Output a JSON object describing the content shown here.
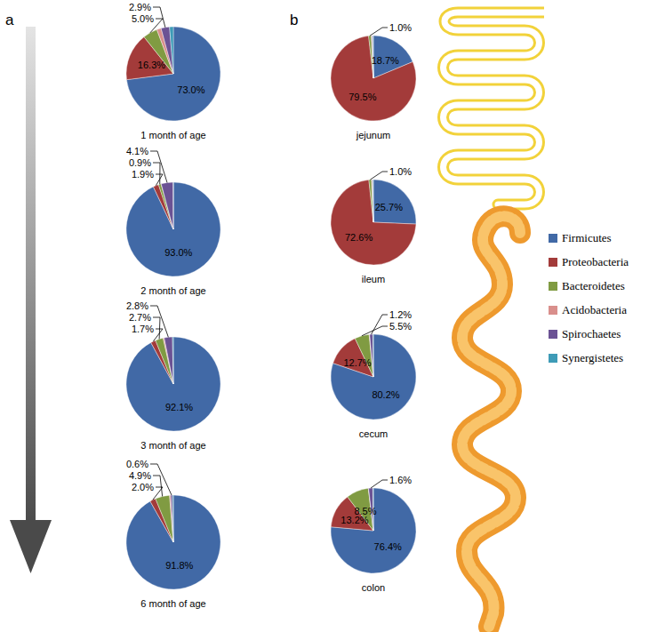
{
  "panel_labels": [
    "a",
    "b"
  ],
  "chart_data": [
    {
      "type": "pie",
      "title": "1 month of age",
      "categories": [
        "Firmicutes",
        "Proteobacteria",
        "Bacteroidetes",
        "Acidobacteria",
        "Spirochaetes",
        "Synergistetes"
      ],
      "values": [
        73.0,
        16.3,
        5.0,
        1.5,
        2.9,
        1.3
      ],
      "value_labels": [
        "73.0%",
        "16.3%",
        "5.0%",
        null,
        "2.9%",
        null
      ],
      "colors": [
        "#4169a6",
        "#a33b3a",
        "#809b42",
        "#d98f8c",
        "#6b5294",
        "#3e9bb7"
      ],
      "data_labels": true
    },
    {
      "type": "pie",
      "title": "2 month of age",
      "categories": [
        "Firmicutes",
        "Proteobacteria",
        "Bacteroidetes",
        "Acidobacteria",
        "Spirochaetes",
        "Synergistetes"
      ],
      "values": [
        93.0,
        1.9,
        0.9,
        0.05,
        4.1,
        0.05
      ],
      "value_labels": [
        "93.0%",
        "1.9%",
        "0.9%",
        null,
        "4.1%",
        null
      ],
      "colors": [
        "#4169a6",
        "#a33b3a",
        "#809b42",
        "#d98f8c",
        "#6b5294",
        "#3e9bb7"
      ],
      "data_labels": true
    },
    {
      "type": "pie",
      "title": "3 month of age",
      "categories": [
        "Firmicutes",
        "Proteobacteria",
        "Bacteroidetes",
        "Acidobacteria",
        "Spirochaetes",
        "Synergistetes"
      ],
      "values": [
        92.1,
        1.7,
        2.7,
        0.4,
        2.8,
        0.3
      ],
      "value_labels": [
        "92.1%",
        "1.7%",
        "2.7%",
        null,
        "2.8%",
        null
      ],
      "colors": [
        "#4169a6",
        "#a33b3a",
        "#809b42",
        "#d98f8c",
        "#6b5294",
        "#3e9bb7"
      ],
      "data_labels": true
    },
    {
      "type": "pie",
      "title": "6 month of age",
      "categories": [
        "Firmicutes",
        "Proteobacteria",
        "Bacteroidetes",
        "Acidobacteria",
        "Spirochaetes",
        "Synergistetes"
      ],
      "values": [
        91.8,
        2.0,
        4.9,
        0.4,
        0.6,
        0.3
      ],
      "value_labels": [
        "91.8%",
        "2.0%",
        "4.9%",
        null,
        "0.6%",
        null
      ],
      "colors": [
        "#4169a6",
        "#a33b3a",
        "#809b42",
        "#d98f8c",
        "#6b5294",
        "#3e9bb7"
      ],
      "data_labels": true
    },
    {
      "type": "pie",
      "title": "jejunum",
      "categories": [
        "Firmicutes",
        "Proteobacteria",
        "Bacteroidetes",
        "Acidobacteria",
        "Spirochaetes",
        "Synergistetes"
      ],
      "values": [
        18.7,
        79.5,
        1.0,
        0.3,
        0.3,
        0.2
      ],
      "value_labels": [
        "18.7%",
        "79.5%",
        "1.0%",
        null,
        null,
        null
      ],
      "colors": [
        "#4169a6",
        "#a33b3a",
        "#809b42",
        "#d98f8c",
        "#6b5294",
        "#3e9bb7"
      ],
      "data_labels": true
    },
    {
      "type": "pie",
      "title": "ileum",
      "categories": [
        "Firmicutes",
        "Proteobacteria",
        "Bacteroidetes",
        "Acidobacteria",
        "Spirochaetes",
        "Synergistetes"
      ],
      "values": [
        25.7,
        72.6,
        1.0,
        0.3,
        0.2,
        0.2
      ],
      "value_labels": [
        "25.7%",
        "72.6%",
        "1.0%",
        null,
        null,
        null
      ],
      "colors": [
        "#4169a6",
        "#a33b3a",
        "#809b42",
        "#d98f8c",
        "#6b5294",
        "#3e9bb7"
      ],
      "data_labels": true
    },
    {
      "type": "pie",
      "title": "cecum",
      "categories": [
        "Firmicutes",
        "Proteobacteria",
        "Bacteroidetes",
        "Acidobacteria",
        "Spirochaetes",
        "Synergistetes"
      ],
      "values": [
        80.2,
        12.7,
        5.5,
        0.2,
        1.2,
        0.2
      ],
      "value_labels": [
        "80.2%",
        "12.7%",
        "5.5%",
        null,
        "1.2%",
        null
      ],
      "colors": [
        "#4169a6",
        "#a33b3a",
        "#809b42",
        "#d98f8c",
        "#6b5294",
        "#3e9bb7"
      ],
      "data_labels": true
    },
    {
      "type": "pie",
      "title": "colon",
      "categories": [
        "Firmicutes",
        "Proteobacteria",
        "Bacteroidetes",
        "Acidobacteria",
        "Spirochaetes",
        "Synergistetes"
      ],
      "values": [
        76.4,
        13.2,
        8.5,
        0.1,
        1.6,
        0.2
      ],
      "value_labels": [
        "76.4%",
        "13.2%",
        "8.5%",
        null,
        "1.6%",
        null
      ],
      "colors": [
        "#4169a6",
        "#a33b3a",
        "#809b42",
        "#d98f8c",
        "#6b5294",
        "#3e9bb7"
      ],
      "data_labels": true
    }
  ]
}
